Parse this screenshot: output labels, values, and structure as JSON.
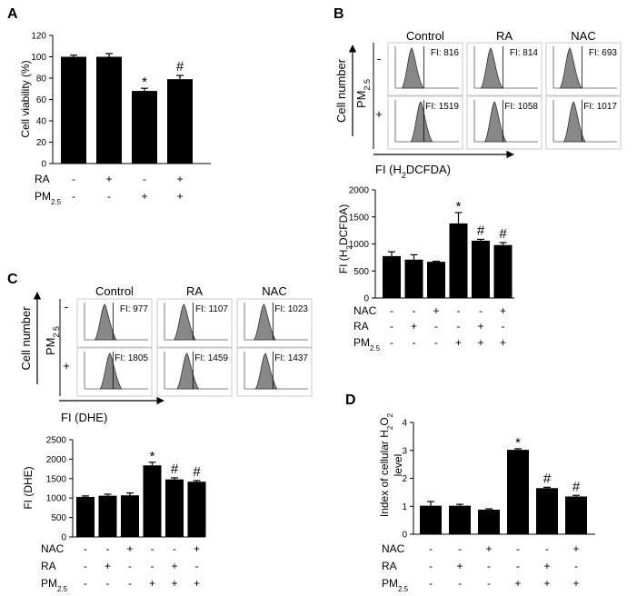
{
  "panel_labels": {
    "A": "A",
    "B": "B",
    "C": "C",
    "D": "D"
  },
  "conditions": {
    "nac": "NAC",
    "ra": "RA",
    "pm": "PM",
    "pm_sub": "2.5"
  },
  "flow_common": {
    "cell_number": "Cell number",
    "pm": "PM",
    "pm_sub": "2.5",
    "minus": "-",
    "plus": "+"
  },
  "flow_b": {
    "groups": [
      "Control",
      "RA",
      "NAC"
    ],
    "axis_label_pre": "FI (H",
    "axis_label_sub": "2",
    "axis_label_post": "DCFDA)",
    "rows": [
      {
        "sign": "-",
        "fi": [
          "FI: 816",
          "FI: 814",
          "FI: 693"
        ]
      },
      {
        "sign": "+",
        "fi": [
          "FI: 1519",
          "FI: 1058",
          "FI: 1017"
        ]
      }
    ]
  },
  "flow_c": {
    "groups": [
      "Control",
      "RA",
      "NAC"
    ],
    "axis_label": "FI (DHE)",
    "rows": [
      {
        "sign": "-",
        "fi": [
          "FI: 977",
          "FI: 1107",
          "FI: 1023"
        ]
      },
      {
        "sign": "+",
        "fi": [
          "FI: 1805",
          "FI: 1459",
          "FI: 1437"
        ]
      }
    ]
  },
  "chart_data": [
    {
      "id": "A",
      "type": "bar",
      "ylabel": "Cell  viability (%)",
      "ylim": [
        0,
        120
      ],
      "yticks": [
        "0",
        "20",
        "40",
        "60",
        "80",
        "100",
        "120"
      ],
      "values": [
        100,
        100,
        68,
        79
      ],
      "errors": [
        1.5,
        3,
        2.5,
        3.5
      ],
      "annotations": [
        "",
        "",
        "*",
        "#"
      ],
      "treatments": {
        "RA": [
          "-",
          "+",
          "-",
          "+"
        ],
        "PM2.5": [
          "-",
          "-",
          "+",
          "+"
        ]
      }
    },
    {
      "id": "B",
      "type": "bar",
      "ylabel_pre": "FI (H",
      "ylabel_sub": "2",
      "ylabel_post": "DCFDA)",
      "ylim": [
        0,
        2000
      ],
      "yticks": [
        "0",
        "500",
        "1000",
        "1500",
        "2000"
      ],
      "values": [
        775,
        710,
        670,
        1380,
        1060,
        980
      ],
      "errors": [
        80,
        90,
        10,
        200,
        25,
        45
      ],
      "annotations": [
        "",
        "",
        "",
        "*",
        "#",
        "#"
      ],
      "treatments": {
        "NAC": [
          "-",
          "-",
          "+",
          "-",
          "-",
          "+"
        ],
        "RA": [
          "-",
          "+",
          "-",
          "-",
          "+",
          "-"
        ],
        "PM2.5": [
          "-",
          "-",
          "-",
          "+",
          "+",
          "+"
        ]
      }
    },
    {
      "id": "C",
      "type": "bar",
      "ylabel": "FI (DHE)",
      "ylim": [
        0,
        2500
      ],
      "yticks": [
        "0",
        "500",
        "1000",
        "1500",
        "2000",
        "2500"
      ],
      "values": [
        1030,
        1060,
        1070,
        1840,
        1480,
        1420
      ],
      "errors": [
        25,
        40,
        60,
        80,
        40,
        30
      ],
      "annotations": [
        "",
        "",
        "",
        "*",
        "#",
        "#"
      ],
      "treatments": {
        "NAC": [
          "-",
          "-",
          "+",
          "-",
          "-",
          "+"
        ],
        "RA": [
          "-",
          "+",
          "-",
          "-",
          "+",
          "-"
        ],
        "PM2.5": [
          "-",
          "-",
          "-",
          "+",
          "+",
          "+"
        ]
      }
    },
    {
      "id": "D",
      "type": "bar",
      "ylabel_line1_pre": "Index of cellular H",
      "ylabel_line1_sub1": "2",
      "ylabel_line1_mid": "O",
      "ylabel_line1_sub2": "2",
      "ylabel_line2": "level",
      "ylim": [
        0,
        4
      ],
      "yticks": [
        "0",
        "1",
        "2",
        "3",
        "4"
      ],
      "values": [
        1.02,
        1.02,
        0.88,
        3.02,
        1.65,
        1.35
      ],
      "errors": [
        0.15,
        0.05,
        0.03,
        0.04,
        0.03,
        0.04
      ],
      "annotations": [
        "",
        "",
        "",
        "*",
        "#",
        "#"
      ],
      "treatments": {
        "NAC": [
          "-",
          "-",
          "+",
          "-",
          "-",
          "+"
        ],
        "RA": [
          "-",
          "+",
          "-",
          "-",
          "+",
          "-"
        ],
        "PM2.5": [
          "-",
          "-",
          "-",
          "+",
          "+",
          "+"
        ]
      }
    }
  ]
}
